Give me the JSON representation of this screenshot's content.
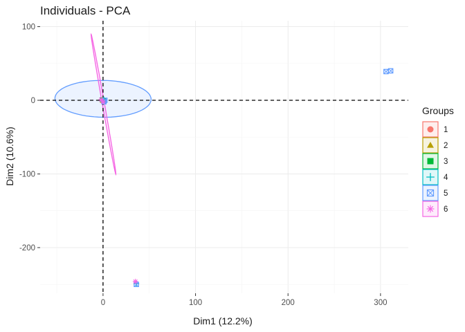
{
  "chart_data": {
    "type": "scatter",
    "title": "Individuals - PCA",
    "xlabel": "Dim1 (12.2%)",
    "ylabel": "Dim2 (10.6%)",
    "xlim": [
      -68,
      330
    ],
    "ylim": [
      -262,
      108
    ],
    "xticks": [
      0,
      100,
      200,
      300
    ],
    "yticks": [
      100,
      0,
      -100,
      -200
    ],
    "grid": true,
    "reference_lines": {
      "x": 0,
      "y": 0,
      "style": "dashed"
    },
    "legend": {
      "title": "Groups",
      "placement": "right"
    },
    "series": [
      {
        "name": "1",
        "color": "#F8766D",
        "marker": "circle",
        "points": [
          [
            -1,
            0
          ],
          [
            0,
            1
          ],
          [
            1,
            -1
          ]
        ],
        "ellipse": null
      },
      {
        "name": "2",
        "color": "#B79F00",
        "marker": "triangle",
        "points": [
          [
            0,
            1
          ],
          [
            -1,
            -1
          ]
        ],
        "ellipse": null
      },
      {
        "name": "3",
        "color": "#00BA38",
        "marker": "square",
        "points": [
          [
            0,
            0
          ],
          [
            -1,
            1
          ],
          [
            1,
            0
          ]
        ],
        "ellipse": null
      },
      {
        "name": "4",
        "color": "#00BFC4",
        "marker": "plus",
        "points": [
          [
            0,
            -1
          ],
          [
            1,
            1
          ],
          [
            36,
            -249
          ]
        ],
        "ellipse": null
      },
      {
        "name": "5",
        "color": "#619CFF",
        "marker": "boxx",
        "points": [
          [
            2,
            0
          ],
          [
            1,
            -2
          ],
          [
            306,
            39
          ],
          [
            311,
            40
          ],
          [
            36,
            -250
          ]
        ],
        "ellipse": {
          "cx": 0,
          "cy": 2,
          "rx": 52,
          "ry": 25,
          "angle_deg": -1
        }
      },
      {
        "name": "6",
        "color": "#F564E3",
        "marker": "asterisk",
        "points": [
          [
            -2,
            1
          ],
          [
            0,
            -2
          ],
          [
            35,
            -246
          ]
        ],
        "ellipse": {
          "cx": 0.5,
          "cy": -5.5,
          "rx": 96,
          "ry": 1.2,
          "angle_deg": -82
        }
      }
    ]
  }
}
